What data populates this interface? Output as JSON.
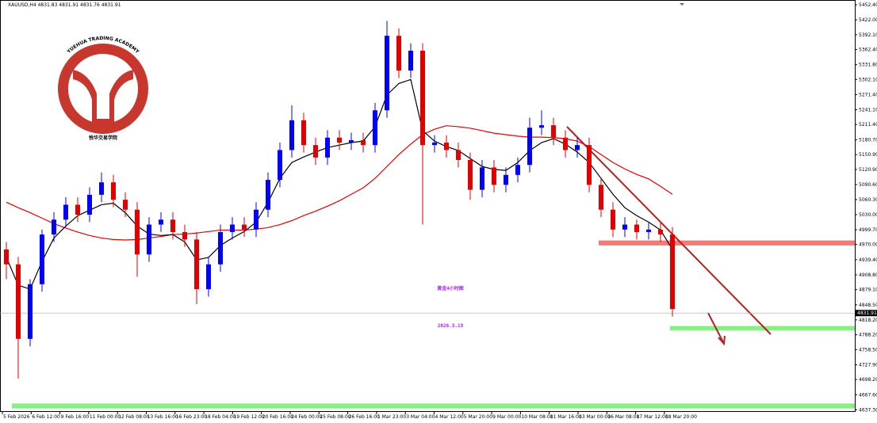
{
  "chart_data": {
    "type": "candlestick",
    "title": "XAUUSD,H4  4831.83 4831.91 4831.76 4831.91",
    "logo_text": "YUEHUA TRADING ACADEMY",
    "logo_cn": "悦华交易学院",
    "annotations": [
      "黄金4小时图",
      "2026.3.19"
    ],
    "bull_color": "#0000ff",
    "bear_color": "#e00000",
    "open": [
      4960,
      4930,
      4780,
      4890,
      4990,
      5020,
      5050,
      5030,
      5070,
      5095,
      5060,
      5040,
      4950,
      5010,
      5020,
      4995,
      4980,
      4880,
      4930,
      4995,
      5010,
      5000,
      5040,
      5100,
      5160,
      5220,
      5170,
      5145,
      5185,
      5175,
      5180,
      5170,
      5240,
      5390,
      5320,
      5360,
      5170,
      5175,
      5160,
      5140,
      5080,
      5125,
      5090,
      5110,
      5130,
      5205,
      5210,
      5185,
      5160,
      5170,
      5090,
      5040,
      5000,
      5010,
      4995,
      5000,
      4990
    ],
    "high": [
      4975,
      4945,
      4900,
      5000,
      5035,
      5065,
      5065,
      5085,
      5115,
      5110,
      5075,
      5055,
      5025,
      5035,
      5035,
      5010,
      4995,
      4945,
      5010,
      5025,
      5025,
      5055,
      5115,
      5175,
      5250,
      5235,
      5185,
      5200,
      5200,
      5195,
      5195,
      5255,
      5420,
      5405,
      5375,
      5375,
      5190,
      5190,
      5175,
      5155,
      5140,
      5140,
      5125,
      5145,
      5225,
      5240,
      5225,
      5200,
      5185,
      5185,
      5105,
      5055,
      5025,
      5020,
      5015,
      5015,
      5005
    ],
    "low": [
      4900,
      4700,
      4765,
      4875,
      4975,
      5005,
      5015,
      5015,
      5055,
      5045,
      5025,
      4905,
      4935,
      4995,
      4980,
      4965,
      4850,
      4865,
      4915,
      4980,
      4985,
      4985,
      5025,
      5085,
      5145,
      5155,
      5130,
      5130,
      5160,
      5160,
      5155,
      5155,
      5225,
      5305,
      5305,
      5010,
      5155,
      5145,
      5125,
      5060,
      5065,
      5075,
      5075,
      5095,
      5115,
      5190,
      5170,
      5145,
      5145,
      5075,
      5025,
      4985,
      4985,
      4980,
      4980,
      4975,
      4825
    ],
    "close": [
      4930,
      4780,
      4890,
      4990,
      5020,
      5050,
      5030,
      5070,
      5095,
      5060,
      5040,
      4950,
      5010,
      5020,
      4995,
      4980,
      4880,
      4930,
      4995,
      5010,
      5000,
      5040,
      5100,
      5160,
      5220,
      5170,
      5145,
      5185,
      5175,
      5180,
      5170,
      5240,
      5390,
      5320,
      5360,
      5170,
      5175,
      5160,
      5140,
      5080,
      5125,
      5090,
      5110,
      5130,
      5205,
      5210,
      5185,
      5160,
      5170,
      5090,
      5040,
      5000,
      5010,
      4995,
      5000,
      4990,
      4840
    ],
    "ma_fast": {
      "color": "#000000",
      "values": [
        4944,
        4888,
        4880,
        4936,
        4983,
        5007,
        5028,
        5039,
        5050,
        5053,
        5034,
        5007,
        4991,
        4988,
        4990,
        4975,
        4939,
        4944,
        4968,
        4983,
        4996,
        5015,
        5055,
        5103,
        5135,
        5146,
        5156,
        5165,
        5170,
        5175,
        5178,
        5207,
        5271,
        5294,
        5302,
        5199,
        5178,
        5167,
        5159,
        5143,
        5127,
        5121,
        5119,
        5135,
        5159,
        5175,
        5183,
        5172,
        5156,
        5135,
        5103,
        5071,
        5044,
        5028,
        5015,
        4999,
        4960
      ]
    },
    "ma_slow": {
      "color": "#e00000",
      "values": [
        5055,
        5044,
        5034,
        5023,
        5012,
        5003,
        4995,
        4988,
        4983,
        4980,
        4979,
        4980,
        4983,
        4986,
        4990,
        4991,
        4993,
        4996,
        4999,
        4999,
        4999,
        5001,
        5004,
        5010,
        5018,
        5028,
        5037,
        5047,
        5058,
        5071,
        5084,
        5103,
        5127,
        5151,
        5172,
        5191,
        5202,
        5209,
        5207,
        5204,
        5199,
        5194,
        5191,
        5188,
        5186,
        5186,
        5185,
        5183,
        5178,
        5167,
        5151,
        5135,
        5122,
        5111,
        5102,
        5087,
        5071
      ]
    },
    "zones": [
      {
        "low": 4968,
        "high": 4978,
        "color": "#f07a7a"
      },
      {
        "low": 4797,
        "high": 4806,
        "color": "#86f086"
      },
      {
        "low": 4640,
        "high": 4650,
        "color": "#86f086"
      }
    ],
    "last_price": 4831.91,
    "ylim": [
      4633,
      5462
    ],
    "yticks": [
      {
        "value": 5452.4,
        "label": "5452.40"
      },
      {
        "value": 5422,
        "label": "5422.00"
      },
      {
        "value": 5392.1,
        "label": "5392.10"
      },
      {
        "value": 5362.4,
        "label": "5362.40"
      },
      {
        "value": 5331.8,
        "label": "5331.80"
      },
      {
        "value": 5302.1,
        "label": "5302.10"
      },
      {
        "value": 5271.4,
        "label": "5271.40"
      },
      {
        "value": 5241.1,
        "label": "5241.10"
      },
      {
        "value": 5211.4,
        "label": "5211.40"
      },
      {
        "value": 5180.7,
        "label": "5180.70"
      },
      {
        "value": 5150.9,
        "label": "5150.90"
      },
      {
        "value": 5120.9,
        "label": "5120.90"
      },
      {
        "value": 5090.6,
        "label": "5090.60"
      },
      {
        "value": 5060.3,
        "label": "5060.30"
      },
      {
        "value": 5030,
        "label": "5030.00"
      },
      {
        "value": 4999.7,
        "label": "4999.70"
      },
      {
        "value": 4970,
        "label": "4970.00"
      },
      {
        "value": 4939.4,
        "label": "4939.40"
      },
      {
        "value": 4908.8,
        "label": "4908.80"
      },
      {
        "value": 4879.1,
        "label": "4879.10"
      },
      {
        "value": 4848.5,
        "label": "4848.50"
      },
      {
        "value": 4818.2,
        "label": "4818.20"
      },
      {
        "value": 4788.2,
        "label": "4788.20"
      },
      {
        "value": 4758.5,
        "label": "4758.50"
      },
      {
        "value": 4727.9,
        "label": "4727.90"
      },
      {
        "value": 4698.2,
        "label": "4698.20"
      },
      {
        "value": 4667.6,
        "label": "4667.60"
      },
      {
        "value": 4637.3,
        "label": "4637.30"
      }
    ],
    "x_labels": [
      "5 Feb 2026",
      "6 Feb 12:00",
      "9 Feb 16:00",
      "11 Feb 00:00",
      "12 Feb 08:00",
      "13 Feb 16:00",
      "16 Feb 23:00",
      "18 Feb 04:00",
      "19 Feb 12:00",
      "20 Feb 16:00",
      "24 Feb 00:00",
      "25 Feb 08:00",
      "26 Feb 16:00",
      "1 Mar 23:00",
      "3 Mar 04:00",
      "4 Mar 12:00",
      "5 Mar 20:00",
      "9 Mar 00:00",
      "10 Mar 08:00",
      "11 Mar 16:00",
      "13 Mar 00:00",
      "16 Mar 08:00",
      "17 Mar 12:00",
      "18 Mar 20:00"
    ]
  }
}
